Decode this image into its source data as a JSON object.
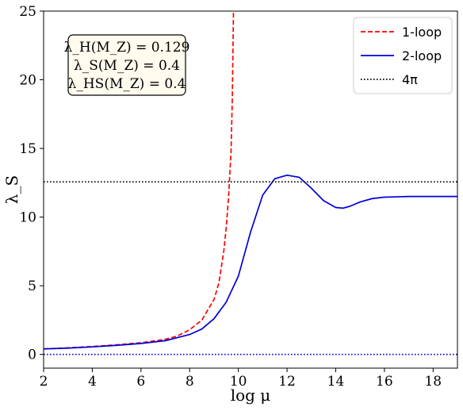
{
  "chart_data": {
    "type": "line",
    "title": "",
    "xlabel": "log μ",
    "ylabel": "λ_S",
    "xlim": [
      2,
      19
    ],
    "ylim": [
      -1,
      25
    ],
    "xticks": [
      2,
      4,
      6,
      8,
      10,
      12,
      14,
      16,
      18
    ],
    "yticks": [
      0,
      5,
      10,
      15,
      20,
      25
    ],
    "grid": false,
    "legend_position": "top-right",
    "annotation": [
      "λ_H(M_Z) = 0.129",
      "λ_S(M_Z) = 0.4",
      "λ_HS(M_Z) = 0.4"
    ],
    "series": [
      {
        "name": "1-loop",
        "color": "#ff0000",
        "style": "dashed",
        "x": [
          2.0,
          3.0,
          4.0,
          5.0,
          6.0,
          7.0,
          7.5,
          8.0,
          8.5,
          9.0,
          9.2,
          9.4,
          9.5,
          9.6,
          9.7,
          9.75,
          9.8
        ],
        "y": [
          0.4,
          0.48,
          0.58,
          0.7,
          0.85,
          1.1,
          1.35,
          1.8,
          2.5,
          4.0,
          5.2,
          7.5,
          9.2,
          11.5,
          14.8,
          18.5,
          25.0
        ]
      },
      {
        "name": "2-loop",
        "color": "#0000dd",
        "style": "solid",
        "x": [
          2.0,
          3.0,
          4.0,
          5.0,
          6.0,
          7.0,
          8.0,
          8.5,
          9.0,
          9.5,
          10.0,
          10.5,
          11.0,
          11.5,
          12.0,
          12.5,
          13.0,
          13.5,
          14.0,
          14.3,
          14.6,
          15.0,
          15.5,
          16.0,
          17.0,
          18.0,
          19.0
        ],
        "y": [
          0.4,
          0.46,
          0.55,
          0.66,
          0.8,
          1.0,
          1.45,
          1.85,
          2.6,
          3.8,
          5.7,
          8.9,
          11.6,
          12.8,
          13.05,
          12.9,
          12.1,
          11.2,
          10.7,
          10.65,
          10.8,
          11.1,
          11.35,
          11.45,
          11.5,
          11.5,
          11.5
        ]
      },
      {
        "name": "4π",
        "color": "#000000",
        "style": "dotted",
        "x": [
          2,
          19
        ],
        "y": [
          12.566,
          12.566
        ]
      }
    ],
    "reference_lines": [
      {
        "y": 0,
        "color": "#0000dd",
        "style": "dotted"
      }
    ]
  }
}
